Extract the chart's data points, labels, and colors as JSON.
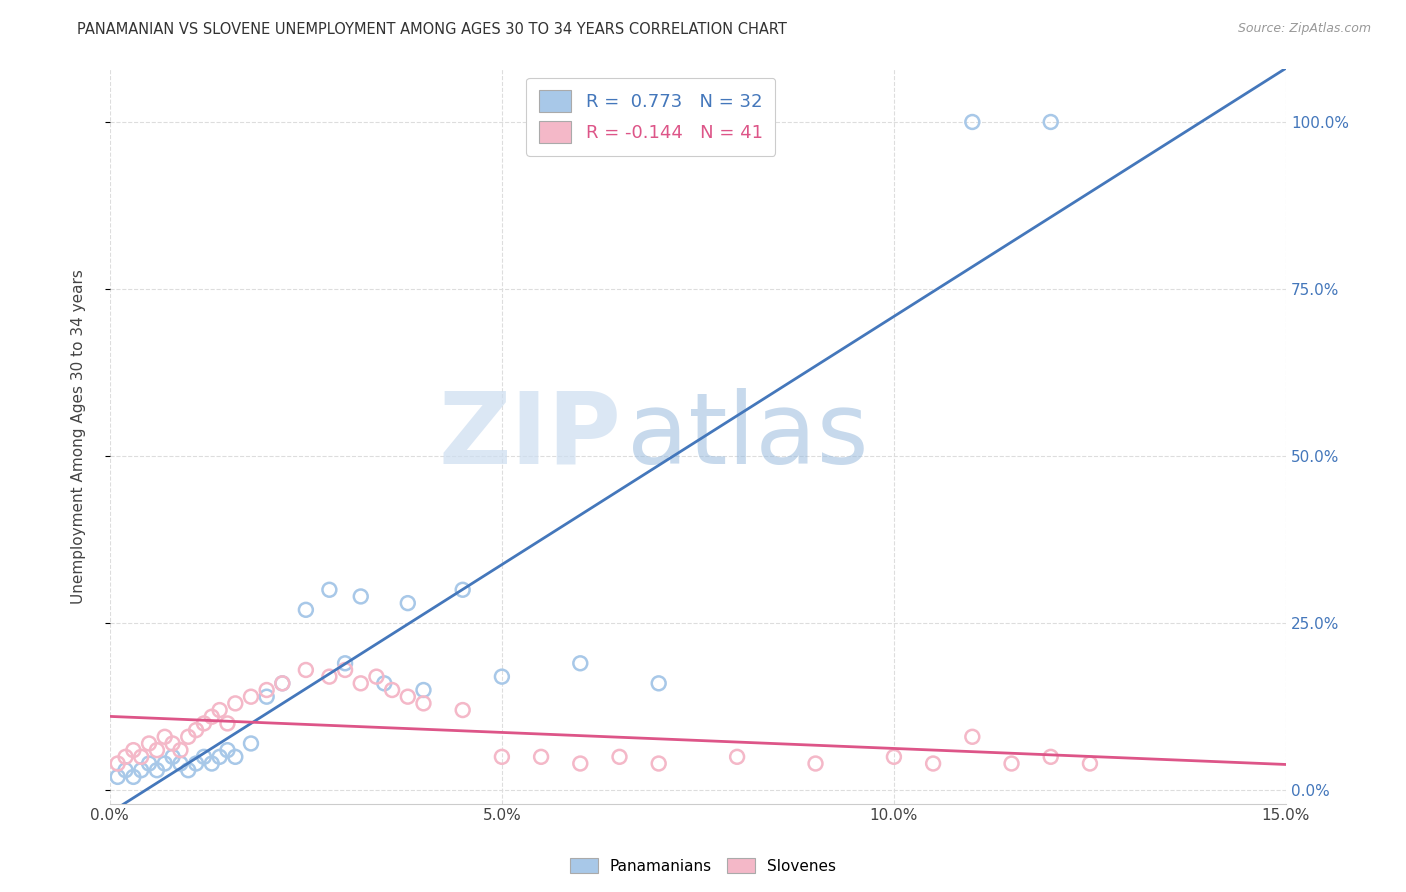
{
  "title": "PANAMANIAN VS SLOVENE UNEMPLOYMENT AMONG AGES 30 TO 34 YEARS CORRELATION CHART",
  "source": "Source: ZipAtlas.com",
  "ylabel": "Unemployment Among Ages 30 to 34 years",
  "xlim": [
    0.0,
    0.15
  ],
  "ylim": [
    -0.02,
    1.08
  ],
  "xticks": [
    0.0,
    0.05,
    0.1,
    0.15
  ],
  "xtick_labels": [
    "0.0%",
    "5.0%",
    "10.0%",
    "15.0%"
  ],
  "yticks": [
    0.0,
    0.25,
    0.5,
    0.75,
    1.0
  ],
  "ytick_labels": [
    "0.0%",
    "25.0%",
    "50.0%",
    "75.0%",
    "100.0%"
  ],
  "panama_color": "#a8c8e8",
  "slovene_color": "#f4b8c8",
  "panama_line_color": "#4477bb",
  "slovene_line_color": "#dd5588",
  "legend_R_panama": " 0.773",
  "legend_N_panama": "32",
  "legend_R_slovene": "-0.144",
  "legend_N_slovene": "41",
  "watermark_zip": "ZIP",
  "watermark_atlas": "atlas",
  "background_color": "#ffffff",
  "grid_color": "#dddddd",
  "panama_x": [
    0.001,
    0.002,
    0.003,
    0.004,
    0.005,
    0.006,
    0.007,
    0.008,
    0.009,
    0.01,
    0.011,
    0.012,
    0.013,
    0.014,
    0.015,
    0.016,
    0.018,
    0.02,
    0.022,
    0.025,
    0.028,
    0.03,
    0.032,
    0.035,
    0.038,
    0.04,
    0.045,
    0.05,
    0.06,
    0.07,
    0.11,
    0.12
  ],
  "panama_y": [
    0.02,
    0.03,
    0.02,
    0.03,
    0.04,
    0.03,
    0.04,
    0.05,
    0.04,
    0.03,
    0.04,
    0.05,
    0.04,
    0.05,
    0.06,
    0.05,
    0.07,
    0.14,
    0.16,
    0.27,
    0.3,
    0.19,
    0.29,
    0.16,
    0.28,
    0.15,
    0.3,
    0.17,
    0.19,
    0.16,
    1.0,
    1.0
  ],
  "slovene_x": [
    0.001,
    0.002,
    0.003,
    0.004,
    0.005,
    0.006,
    0.007,
    0.008,
    0.009,
    0.01,
    0.011,
    0.012,
    0.013,
    0.014,
    0.015,
    0.016,
    0.018,
    0.02,
    0.022,
    0.025,
    0.028,
    0.03,
    0.032,
    0.034,
    0.036,
    0.038,
    0.04,
    0.045,
    0.05,
    0.055,
    0.06,
    0.065,
    0.07,
    0.08,
    0.09,
    0.1,
    0.105,
    0.11,
    0.115,
    0.12,
    0.125
  ],
  "slovene_y": [
    0.04,
    0.05,
    0.06,
    0.05,
    0.07,
    0.06,
    0.08,
    0.07,
    0.06,
    0.08,
    0.09,
    0.1,
    0.11,
    0.12,
    0.1,
    0.13,
    0.14,
    0.15,
    0.16,
    0.18,
    0.17,
    0.18,
    0.16,
    0.17,
    0.15,
    0.14,
    0.13,
    0.12,
    0.05,
    0.05,
    0.04,
    0.05,
    0.04,
    0.05,
    0.04,
    0.05,
    0.04,
    0.08,
    0.04,
    0.05,
    0.04
  ]
}
